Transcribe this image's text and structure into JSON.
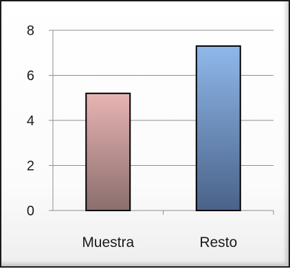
{
  "chart_data": {
    "type": "bar",
    "categories": [
      "Muestra",
      "Resto"
    ],
    "values": [
      5.2,
      7.3
    ],
    "ylim": [
      0,
      8
    ],
    "yticks": [
      0,
      2,
      4,
      6,
      8
    ],
    "title": "",
    "xlabel": "",
    "ylabel": "",
    "grid": true,
    "legend": false,
    "colors": {
      "Muestra": {
        "top": "#e8b4b3",
        "bottom": "#8a6e6d"
      },
      "Resto": {
        "top": "#8fb8ea",
        "bottom": "#4a6289"
      },
      "gridline": "#8c8c8c",
      "axis": "#8c8c8c"
    }
  }
}
